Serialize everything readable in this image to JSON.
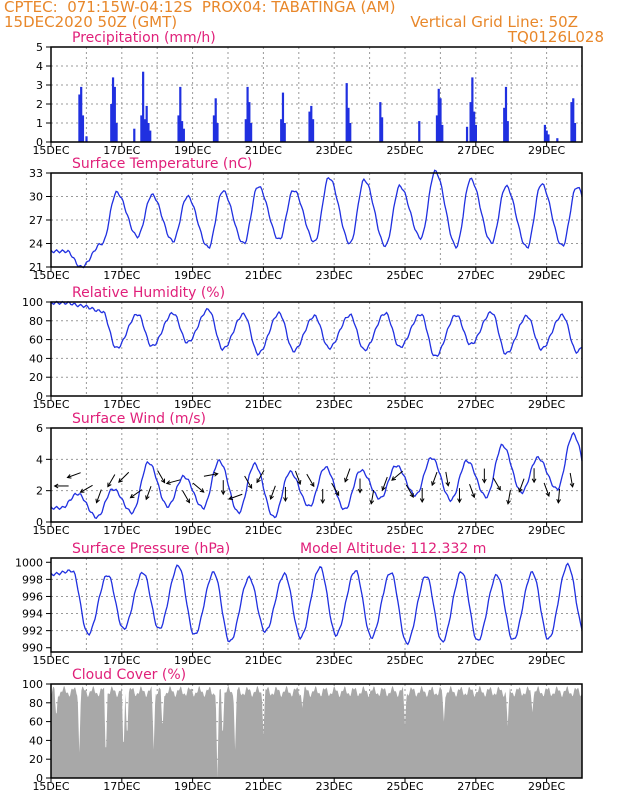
{
  "header": {
    "line1_left": "CPTEC:  071:15W-04:12S  PROX04: TABATINGA (AM)",
    "line2_left": "15DEC2020 50Z (GMT)",
    "line2_right": "Vertical Grid Line: 50Z",
    "line3_right": "TQ0126L028"
  },
  "colors": {
    "header": "#e8872a",
    "panel_title": "#e0207a",
    "series": "#2030e0",
    "cloud": "#a8a8a8",
    "grid": "#999999"
  },
  "chart_data": [
    {
      "type": "bar",
      "title": "Precipitation (mm/h)",
      "ylim": [
        0,
        5
      ],
      "yticks": [
        "0",
        "1",
        "2",
        "3",
        "4",
        "5"
      ],
      "xticks": [
        "15DEC",
        "17DEC",
        "19DEC",
        "21DEC",
        "23DEC",
        "25DEC",
        "27DEC",
        "29DEC"
      ],
      "x_day_range": [
        15,
        30
      ],
      "bars": [
        [
          15.8,
          2.5
        ],
        [
          15.85,
          2.9
        ],
        [
          15.9,
          1.4
        ],
        [
          16.0,
          0.3
        ],
        [
          16.7,
          2.0
        ],
        [
          16.75,
          3.4
        ],
        [
          16.8,
          2.9
        ],
        [
          16.85,
          1.0
        ],
        [
          17.35,
          0.7
        ],
        [
          17.55,
          1.4
        ],
        [
          17.6,
          3.7
        ],
        [
          17.65,
          1.2
        ],
        [
          17.7,
          1.9
        ],
        [
          17.75,
          1.0
        ],
        [
          17.8,
          0.6
        ],
        [
          18.6,
          1.4
        ],
        [
          18.65,
          2.9
        ],
        [
          18.7,
          1.1
        ],
        [
          18.75,
          0.7
        ],
        [
          19.6,
          1.4
        ],
        [
          19.65,
          2.3
        ],
        [
          19.7,
          1.0
        ],
        [
          20.5,
          1.2
        ],
        [
          20.55,
          2.9
        ],
        [
          20.6,
          2.1
        ],
        [
          20.65,
          1.0
        ],
        [
          21.5,
          1.2
        ],
        [
          21.55,
          2.6
        ],
        [
          21.6,
          1.0
        ],
        [
          22.3,
          1.6
        ],
        [
          22.35,
          1.9
        ],
        [
          22.4,
          1.2
        ],
        [
          23.35,
          3.1
        ],
        [
          23.4,
          1.8
        ],
        [
          23.45,
          1.0
        ],
        [
          24.3,
          2.1
        ],
        [
          24.35,
          1.3
        ],
        [
          25.4,
          1.1
        ],
        [
          25.9,
          1.4
        ],
        [
          25.95,
          2.8
        ],
        [
          26.0,
          2.3
        ],
        [
          26.05,
          0.9
        ],
        [
          26.75,
          0.8
        ],
        [
          26.85,
          2.1
        ],
        [
          26.9,
          3.4
        ],
        [
          26.95,
          1.6
        ],
        [
          27.0,
          0.9
        ],
        [
          27.8,
          1.8
        ],
        [
          27.85,
          2.9
        ],
        [
          27.9,
          1.1
        ],
        [
          28.95,
          0.9
        ],
        [
          29.0,
          0.6
        ],
        [
          29.05,
          0.4
        ],
        [
          29.3,
          0.2
        ],
        [
          29.7,
          2.1
        ],
        [
          29.75,
          2.3
        ],
        [
          29.8,
          1.0
        ]
      ]
    },
    {
      "type": "line",
      "title": "Surface Temperature (nC)",
      "ylim": [
        21,
        33
      ],
      "yticks": [
        "21",
        "24",
        "27",
        "30",
        "33"
      ],
      "xticks": [
        "15DEC",
        "17DEC",
        "19DEC",
        "21DEC",
        "23DEC",
        "25DEC",
        "27DEC",
        "29DEC"
      ],
      "x_day_range": [
        15,
        30
      ],
      "min_start": [
        15.0,
        24.2
      ],
      "daily_pattern": {
        "max_phase": 0.85,
        "min_phase": 0.45
      },
      "daily_max": [
        21.0,
        30.5,
        30.2,
        30.0,
        30.7,
        31.3,
        30.8,
        32.4,
        32.1,
        31.3,
        33.2,
        32.2,
        31.3,
        31.6,
        31.2,
        32.3
      ],
      "daily_min": [
        23.0,
        24.0,
        24.9,
        24.3,
        23.5,
        24.0,
        24.5,
        24.2,
        24.0,
        23.7,
        24.7,
        23.6,
        24.1,
        23.5,
        23.7,
        24.2
      ]
    },
    {
      "type": "line",
      "title": "Relative Humidity (%)",
      "ylim": [
        0,
        100
      ],
      "yticks": [
        "0",
        "20",
        "40",
        "60",
        "80",
        "100"
      ],
      "xticks": [
        "15DEC",
        "17DEC",
        "19DEC",
        "21DEC",
        "23DEC",
        "25DEC",
        "27DEC",
        "29DEC"
      ],
      "x_day_range": [
        15,
        30
      ],
      "daily_max": [
        99,
        90,
        87,
        88,
        92,
        87,
        88,
        85,
        86,
        88,
        87,
        86,
        89,
        85,
        86,
        88
      ],
      "daily_min": [
        96,
        51,
        53,
        57,
        50,
        45,
        48,
        51,
        49,
        52,
        42,
        55,
        45,
        50,
        47,
        43
      ]
    },
    {
      "type": "line",
      "title": "Surface Wind (m/s)",
      "ylim": [
        0,
        6
      ],
      "yticks": [
        "0",
        "2",
        "4",
        "6"
      ],
      "xticks": [
        "15DEC",
        "17DEC",
        "19DEC",
        "21DEC",
        "23DEC",
        "25DEC",
        "27DEC",
        "29DEC"
      ],
      "x_day_range": [
        15,
        30
      ],
      "daily_max": [
        1.8,
        2.1,
        3.8,
        2.9,
        3.9,
        3.7,
        3.2,
        3.5,
        3.3,
        3.6,
        4.1,
        3.9,
        4.9,
        4.1,
        5.6,
        4.0
      ],
      "daily_min": [
        0.9,
        0.3,
        0.6,
        1.0,
        0.9,
        0.6,
        0.3,
        1.0,
        0.8,
        1.5,
        1.7,
        1.4,
        1.6,
        1.9,
        2.1,
        1.8
      ],
      "arrow_angles_deg": [
        180,
        200,
        210,
        250,
        240,
        225,
        215,
        250,
        300,
        195,
        300,
        320,
        10,
        270,
        200,
        300,
        240,
        250,
        270,
        290,
        300,
        270,
        300,
        250,
        270,
        260,
        250,
        220,
        300,
        270,
        250,
        280,
        270,
        290,
        270,
        300,
        260,
        250,
        270,
        290,
        265,
        280
      ]
    },
    {
      "type": "line",
      "title": "Surface Pressure (hPa)",
      "subtitle": "Model Altitude: 112.332 m",
      "ylim": [
        989.5,
        1000.5
      ],
      "yticks": [
        "990",
        "992",
        "994",
        "996",
        "998",
        "1000"
      ],
      "xticks": [
        "15DEC",
        "17DEC",
        "19DEC",
        "21DEC",
        "23DEC",
        "25DEC",
        "27DEC",
        "29DEC"
      ],
      "x_day_range": [
        15,
        30
      ],
      "daily_max": [
        999.0,
        998.5,
        998.8,
        999.6,
        998.8,
        998.2,
        998.6,
        999.4,
        999.0,
        998.8,
        998.4,
        998.9,
        998.5,
        998.8,
        999.7,
        999.0
      ],
      "daily_min": [
        998.6,
        991.6,
        992.2,
        992.2,
        991.5,
        990.7,
        991.9,
        991.2,
        991.5,
        991.2,
        990.5,
        990.7,
        990.8,
        990.9,
        991.0,
        992.0
      ]
    },
    {
      "type": "area",
      "title": "Cloud Cover (%)",
      "ylim": [
        0,
        100
      ],
      "yticks": [
        "0",
        "20",
        "40",
        "60",
        "80",
        "100"
      ],
      "xticks": [
        "15DEC",
        "17DEC",
        "19DEC",
        "21DEC",
        "23DEC",
        "25DEC",
        "27DEC",
        "29DEC"
      ],
      "x_day_range": [
        15,
        30
      ],
      "base_level": 92,
      "dips": [
        [
          15.15,
          63
        ],
        [
          15.8,
          27
        ],
        [
          16.55,
          18
        ],
        [
          17.05,
          25
        ],
        [
          17.15,
          40
        ],
        [
          17.9,
          30
        ],
        [
          18.15,
          50
        ],
        [
          19.7,
          0
        ],
        [
          19.85,
          40
        ],
        [
          20.2,
          30
        ],
        [
          21.0,
          45
        ],
        [
          22.1,
          75
        ],
        [
          25.0,
          55
        ],
        [
          26.1,
          60
        ],
        [
          27.9,
          55
        ],
        [
          28.6,
          70
        ]
      ]
    }
  ]
}
